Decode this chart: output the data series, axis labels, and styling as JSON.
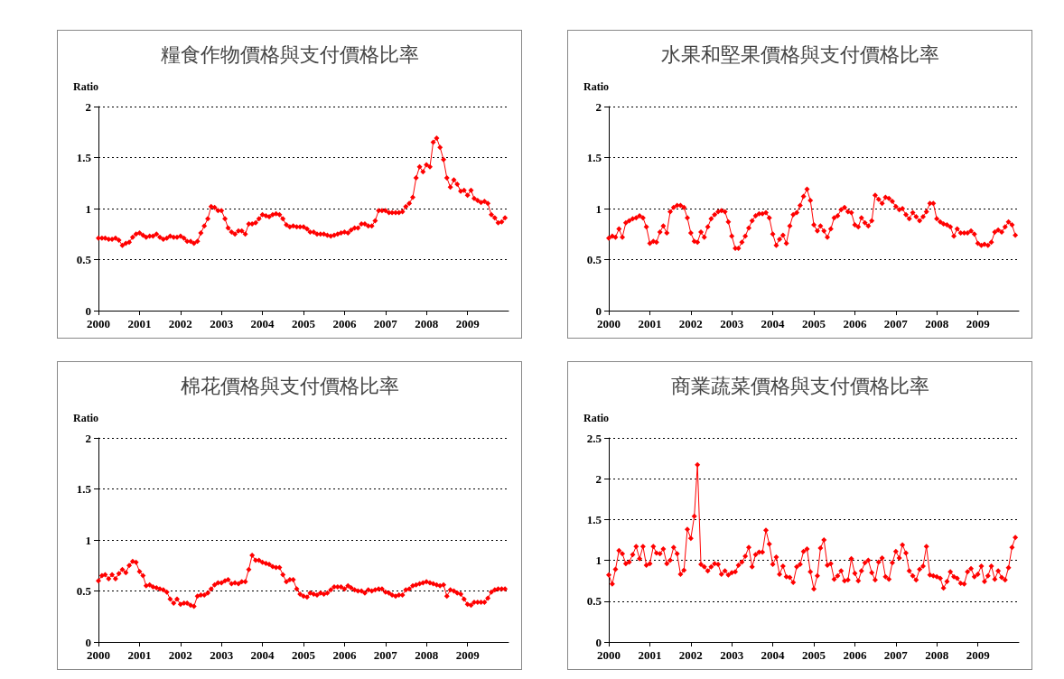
{
  "chart_data": [
    {
      "type": "line",
      "title": "糧食作物價格與支付價格比率",
      "ylabel": "Ratio",
      "xlim": [
        "2000-01",
        "2010-01"
      ],
      "xticks": [
        "2000",
        "2001",
        "2002",
        "2003",
        "2004",
        "2005",
        "2006",
        "2007",
        "2008",
        "2009"
      ],
      "ylim": [
        0,
        2
      ],
      "yticks": [
        0,
        0.5,
        1,
        1.5,
        2
      ],
      "grid": "y",
      "marker": "diamond",
      "line_style": "solid",
      "x": [
        "2000-01",
        "2000-02",
        "2000-03",
        "2000-04",
        "2000-05",
        "2000-06",
        "2000-07",
        "2000-08",
        "2000-09",
        "2000-10",
        "2000-11",
        "2000-12",
        "2001-01",
        "2001-02",
        "2001-03",
        "2001-04",
        "2001-05",
        "2001-06",
        "2001-07",
        "2001-08",
        "2001-09",
        "2001-10",
        "2001-11",
        "2001-12",
        "2002-01",
        "2002-02",
        "2002-03",
        "2002-04",
        "2002-05",
        "2002-06",
        "2002-07",
        "2002-08",
        "2002-09",
        "2002-10",
        "2002-11",
        "2002-12",
        "2003-01",
        "2003-02",
        "2003-03",
        "2003-04",
        "2003-05",
        "2003-06",
        "2003-07",
        "2003-08",
        "2003-09",
        "2003-10",
        "2003-11",
        "2003-12",
        "2004-01",
        "2004-02",
        "2004-03",
        "2004-04",
        "2004-05",
        "2004-06",
        "2004-07",
        "2004-08",
        "2004-09",
        "2004-10",
        "2004-11",
        "2004-12",
        "2005-01",
        "2005-02",
        "2005-03",
        "2005-04",
        "2005-05",
        "2005-06",
        "2005-07",
        "2005-08",
        "2005-09",
        "2005-10",
        "2005-11",
        "2005-12",
        "2006-01",
        "2006-02",
        "2006-03",
        "2006-04",
        "2006-05",
        "2006-06",
        "2006-07",
        "2006-08",
        "2006-09",
        "2006-10",
        "2006-11",
        "2006-12",
        "2007-01",
        "2007-02",
        "2007-03",
        "2007-04",
        "2007-05",
        "2007-06",
        "2007-07",
        "2007-08",
        "2007-09",
        "2007-10",
        "2007-11",
        "2007-12",
        "2008-01",
        "2008-02",
        "2008-03",
        "2008-04",
        "2008-05",
        "2008-06",
        "2008-07",
        "2008-08",
        "2008-09",
        "2008-10",
        "2008-11",
        "2008-12",
        "2009-01",
        "2009-02",
        "2009-03",
        "2009-04",
        "2009-05",
        "2009-06",
        "2009-07",
        "2009-08",
        "2009-09",
        "2009-10",
        "2009-11",
        "2009-12"
      ],
      "series": [
        {
          "color": "#ff0000",
          "values": [
            0.71,
            0.71,
            0.71,
            0.7,
            0.7,
            0.71,
            0.69,
            0.64,
            0.66,
            0.67,
            0.72,
            0.75,
            0.76,
            0.74,
            0.72,
            0.73,
            0.73,
            0.75,
            0.72,
            0.7,
            0.71,
            0.73,
            0.72,
            0.72,
            0.73,
            0.71,
            0.68,
            0.68,
            0.66,
            0.68,
            0.76,
            0.83,
            0.9,
            1.02,
            1.01,
            0.98,
            0.98,
            0.9,
            0.81,
            0.77,
            0.75,
            0.78,
            0.78,
            0.75,
            0.85,
            0.85,
            0.86,
            0.9,
            0.94,
            0.93,
            0.92,
            0.94,
            0.95,
            0.94,
            0.9,
            0.84,
            0.82,
            0.83,
            0.82,
            0.82,
            0.82,
            0.8,
            0.77,
            0.77,
            0.75,
            0.75,
            0.75,
            0.74,
            0.73,
            0.74,
            0.75,
            0.76,
            0.77,
            0.76,
            0.79,
            0.81,
            0.81,
            0.85,
            0.85,
            0.83,
            0.83,
            0.88,
            0.98,
            0.98,
            0.98,
            0.96,
            0.96,
            0.96,
            0.96,
            0.97,
            1.02,
            1.05,
            1.11,
            1.3,
            1.41,
            1.36,
            1.43,
            1.41,
            1.65,
            1.69,
            1.6,
            1.48,
            1.3,
            1.21,
            1.28,
            1.24,
            1.17,
            1.18,
            1.13,
            1.18,
            1.1,
            1.08,
            1.06,
            1.07,
            1.05,
            0.94,
            0.91,
            0.86,
            0.87,
            0.91
          ]
        }
      ]
    },
    {
      "type": "line",
      "title": "水果和堅果價格與支付價格比率",
      "ylabel": "Ratio",
      "xlim": [
        "2000-01",
        "2010-01"
      ],
      "xticks": [
        "2000",
        "2001",
        "2002",
        "2003",
        "2004",
        "2005",
        "2006",
        "2007",
        "2008",
        "2009"
      ],
      "ylim": [
        0,
        2
      ],
      "yticks": [
        0,
        0.5,
        1,
        1.5,
        2
      ],
      "grid": "y",
      "marker": "diamond",
      "line_style": "solid",
      "x": [
        "2000-01",
        "2000-02",
        "2000-03",
        "2000-04",
        "2000-05",
        "2000-06",
        "2000-07",
        "2000-08",
        "2000-09",
        "2000-10",
        "2000-11",
        "2000-12",
        "2001-01",
        "2001-02",
        "2001-03",
        "2001-04",
        "2001-05",
        "2001-06",
        "2001-07",
        "2001-08",
        "2001-09",
        "2001-10",
        "2001-11",
        "2001-12",
        "2002-01",
        "2002-02",
        "2002-03",
        "2002-04",
        "2002-05",
        "2002-06",
        "2002-07",
        "2002-08",
        "2002-09",
        "2002-10",
        "2002-11",
        "2002-12",
        "2003-01",
        "2003-02",
        "2003-03",
        "2003-04",
        "2003-05",
        "2003-06",
        "2003-07",
        "2003-08",
        "2003-09",
        "2003-10",
        "2003-11",
        "2003-12",
        "2004-01",
        "2004-02",
        "2004-03",
        "2004-04",
        "2004-05",
        "2004-06",
        "2004-07",
        "2004-08",
        "2004-09",
        "2004-10",
        "2004-11",
        "2004-12",
        "2005-01",
        "2005-02",
        "2005-03",
        "2005-04",
        "2005-05",
        "2005-06",
        "2005-07",
        "2005-08",
        "2005-09",
        "2005-10",
        "2005-11",
        "2005-12",
        "2006-01",
        "2006-02",
        "2006-03",
        "2006-04",
        "2006-05",
        "2006-06",
        "2006-07",
        "2006-08",
        "2006-09",
        "2006-10",
        "2006-11",
        "2006-12",
        "2007-01",
        "2007-02",
        "2007-03",
        "2007-04",
        "2007-05",
        "2007-06",
        "2007-07",
        "2007-08",
        "2007-09",
        "2007-10",
        "2007-11",
        "2007-12",
        "2008-01",
        "2008-02",
        "2008-03",
        "2008-04",
        "2008-05",
        "2008-06",
        "2008-07",
        "2008-08",
        "2008-09",
        "2008-10",
        "2008-11",
        "2008-12",
        "2009-01",
        "2009-02",
        "2009-03",
        "2009-04",
        "2009-05",
        "2009-06",
        "2009-07",
        "2009-08",
        "2009-09",
        "2009-10",
        "2009-11",
        "2009-12"
      ],
      "series": [
        {
          "color": "#ff0000",
          "values": [
            0.71,
            0.73,
            0.72,
            0.8,
            0.72,
            0.86,
            0.88,
            0.9,
            0.91,
            0.93,
            0.91,
            0.82,
            0.66,
            0.68,
            0.67,
            0.77,
            0.83,
            0.76,
            0.97,
            1.01,
            1.03,
            1.03,
            1.01,
            0.91,
            0.76,
            0.68,
            0.67,
            0.77,
            0.72,
            0.82,
            0.9,
            0.94,
            0.97,
            0.98,
            0.97,
            0.87,
            0.73,
            0.61,
            0.61,
            0.67,
            0.73,
            0.81,
            0.88,
            0.93,
            0.95,
            0.95,
            0.96,
            0.91,
            0.75,
            0.64,
            0.7,
            0.74,
            0.66,
            0.83,
            0.94,
            0.96,
            1.03,
            1.12,
            1.19,
            1.08,
            0.84,
            0.78,
            0.83,
            0.78,
            0.72,
            0.8,
            0.91,
            0.93,
            0.99,
            1.01,
            0.97,
            0.96,
            0.84,
            0.82,
            0.91,
            0.86,
            0.83,
            0.88,
            1.13,
            1.09,
            1.05,
            1.11,
            1.1,
            1.07,
            1.02,
            0.99,
            1.0,
            0.94,
            0.9,
            0.96,
            0.92,
            0.88,
            0.92,
            0.97,
            1.05,
            1.05,
            0.9,
            0.87,
            0.85,
            0.84,
            0.82,
            0.73,
            0.8,
            0.76,
            0.76,
            0.76,
            0.78,
            0.75,
            0.66,
            0.64,
            0.65,
            0.64,
            0.67,
            0.77,
            0.79,
            0.77,
            0.82,
            0.87,
            0.84,
            0.74
          ]
        }
      ]
    },
    {
      "type": "line",
      "title": "棉花價格與支付價格比率",
      "ylabel": "Ratio",
      "xlim": [
        "2000-01",
        "2010-01"
      ],
      "xticks": [
        "2000",
        "2001",
        "2002",
        "2003",
        "2004",
        "2005",
        "2006",
        "2007",
        "2008",
        "2009"
      ],
      "ylim": [
        0,
        2
      ],
      "yticks": [
        0,
        0.5,
        1,
        1.5,
        2
      ],
      "grid": "y",
      "marker": "diamond",
      "line_style": "solid",
      "x": [
        "2000-01",
        "2000-02",
        "2000-03",
        "2000-04",
        "2000-05",
        "2000-06",
        "2000-07",
        "2000-08",
        "2000-09",
        "2000-10",
        "2000-11",
        "2000-12",
        "2001-01",
        "2001-02",
        "2001-03",
        "2001-04",
        "2001-05",
        "2001-06",
        "2001-07",
        "2001-08",
        "2001-09",
        "2001-10",
        "2001-11",
        "2001-12",
        "2002-01",
        "2002-02",
        "2002-03",
        "2002-04",
        "2002-05",
        "2002-06",
        "2002-07",
        "2002-08",
        "2002-09",
        "2002-10",
        "2002-11",
        "2002-12",
        "2003-01",
        "2003-02",
        "2003-03",
        "2003-04",
        "2003-05",
        "2003-06",
        "2003-07",
        "2003-08",
        "2003-09",
        "2003-10",
        "2003-11",
        "2003-12",
        "2004-01",
        "2004-02",
        "2004-03",
        "2004-04",
        "2004-05",
        "2004-06",
        "2004-07",
        "2004-08",
        "2004-09",
        "2004-10",
        "2004-11",
        "2004-12",
        "2005-01",
        "2005-02",
        "2005-03",
        "2005-04",
        "2005-05",
        "2005-06",
        "2005-07",
        "2005-08",
        "2005-09",
        "2005-10",
        "2005-11",
        "2005-12",
        "2006-01",
        "2006-02",
        "2006-03",
        "2006-04",
        "2006-05",
        "2006-06",
        "2006-07",
        "2006-08",
        "2006-09",
        "2006-10",
        "2006-11",
        "2006-12",
        "2007-01",
        "2007-02",
        "2007-03",
        "2007-04",
        "2007-05",
        "2007-06",
        "2007-07",
        "2007-08",
        "2007-09",
        "2007-10",
        "2007-11",
        "2007-12",
        "2008-01",
        "2008-02",
        "2008-03",
        "2008-04",
        "2008-05",
        "2008-06",
        "2008-07",
        "2008-08",
        "2008-09",
        "2008-10",
        "2008-11",
        "2008-12",
        "2009-01",
        "2009-02",
        "2009-03",
        "2009-04",
        "2009-05",
        "2009-06",
        "2009-07",
        "2009-08",
        "2009-09",
        "2009-10",
        "2009-11",
        "2009-12"
      ],
      "series": [
        {
          "color": "#ff0000",
          "values": [
            0.6,
            0.65,
            0.66,
            0.62,
            0.66,
            0.62,
            0.67,
            0.71,
            0.68,
            0.75,
            0.79,
            0.78,
            0.69,
            0.65,
            0.55,
            0.56,
            0.54,
            0.53,
            0.52,
            0.51,
            0.49,
            0.42,
            0.38,
            0.42,
            0.37,
            0.38,
            0.38,
            0.36,
            0.35,
            0.45,
            0.46,
            0.46,
            0.48,
            0.52,
            0.56,
            0.58,
            0.58,
            0.6,
            0.61,
            0.57,
            0.58,
            0.57,
            0.59,
            0.59,
            0.71,
            0.85,
            0.8,
            0.8,
            0.78,
            0.77,
            0.76,
            0.74,
            0.73,
            0.73,
            0.66,
            0.59,
            0.61,
            0.61,
            0.52,
            0.47,
            0.45,
            0.44,
            0.48,
            0.47,
            0.46,
            0.48,
            0.47,
            0.48,
            0.51,
            0.54,
            0.54,
            0.54,
            0.52,
            0.55,
            0.53,
            0.51,
            0.5,
            0.5,
            0.48,
            0.51,
            0.5,
            0.51,
            0.52,
            0.52,
            0.49,
            0.48,
            0.46,
            0.45,
            0.46,
            0.46,
            0.51,
            0.52,
            0.55,
            0.56,
            0.57,
            0.58,
            0.59,
            0.58,
            0.57,
            0.56,
            0.55,
            0.56,
            0.45,
            0.51,
            0.5,
            0.48,
            0.47,
            0.42,
            0.37,
            0.36,
            0.39,
            0.39,
            0.39,
            0.39,
            0.43,
            0.49,
            0.51,
            0.52,
            0.52,
            0.52
          ]
        }
      ]
    },
    {
      "type": "line",
      "title": "商業蔬菜價格與支付價格比率",
      "ylabel": "Ratio",
      "xlim": [
        "2000-01",
        "2010-01"
      ],
      "xticks": [
        "2000",
        "2001",
        "2002",
        "2003",
        "2004",
        "2005",
        "2006",
        "2007",
        "2008",
        "2009"
      ],
      "ylim": [
        0,
        2.5
      ],
      "yticks": [
        0,
        0.5,
        1,
        1.5,
        2,
        2.5
      ],
      "grid": "y",
      "marker": "diamond",
      "line_style": "solid",
      "x": [
        "2000-01",
        "2000-02",
        "2000-03",
        "2000-04",
        "2000-05",
        "2000-06",
        "2000-07",
        "2000-08",
        "2000-09",
        "2000-10",
        "2000-11",
        "2000-12",
        "2001-01",
        "2001-02",
        "2001-03",
        "2001-04",
        "2001-05",
        "2001-06",
        "2001-07",
        "2001-08",
        "2001-09",
        "2001-10",
        "2001-11",
        "2001-12",
        "2002-01",
        "2002-02",
        "2002-03",
        "2002-04",
        "2002-05",
        "2002-06",
        "2002-07",
        "2002-08",
        "2002-09",
        "2002-10",
        "2002-11",
        "2002-12",
        "2003-01",
        "2003-02",
        "2003-03",
        "2003-04",
        "2003-05",
        "2003-06",
        "2003-07",
        "2003-08",
        "2003-09",
        "2003-10",
        "2003-11",
        "2003-12",
        "2004-01",
        "2004-02",
        "2004-03",
        "2004-04",
        "2004-05",
        "2004-06",
        "2004-07",
        "2004-08",
        "2004-09",
        "2004-10",
        "2004-11",
        "2004-12",
        "2005-01",
        "2005-02",
        "2005-03",
        "2005-04",
        "2005-05",
        "2005-06",
        "2005-07",
        "2005-08",
        "2005-09",
        "2005-10",
        "2005-11",
        "2005-12",
        "2006-01",
        "2006-02",
        "2006-03",
        "2006-04",
        "2006-05",
        "2006-06",
        "2006-07",
        "2006-08",
        "2006-09",
        "2006-10",
        "2006-11",
        "2006-12",
        "2007-01",
        "2007-02",
        "2007-03",
        "2007-04",
        "2007-05",
        "2007-06",
        "2007-07",
        "2007-08",
        "2007-09",
        "2007-10",
        "2007-11",
        "2007-12",
        "2008-01",
        "2008-02",
        "2008-03",
        "2008-04",
        "2008-05",
        "2008-06",
        "2008-07",
        "2008-08",
        "2008-09",
        "2008-10",
        "2008-11",
        "2008-12",
        "2009-01",
        "2009-02",
        "2009-03",
        "2009-04",
        "2009-05",
        "2009-06",
        "2009-07",
        "2009-08",
        "2009-09",
        "2009-10",
        "2009-11",
        "2009-12"
      ],
      "series": [
        {
          "color": "#ff0000",
          "values": [
            0.82,
            0.71,
            0.89,
            1.12,
            1.08,
            0.96,
            0.98,
            1.07,
            1.17,
            1.02,
            1.17,
            0.94,
            0.96,
            1.17,
            1.09,
            1.08,
            1.14,
            0.96,
            1.0,
            1.16,
            1.08,
            0.83,
            0.88,
            1.38,
            1.27,
            1.54,
            2.17,
            0.95,
            0.92,
            0.87,
            0.92,
            0.96,
            0.95,
            0.83,
            0.87,
            0.82,
            0.85,
            0.86,
            0.94,
            0.98,
            1.05,
            1.16,
            0.92,
            1.07,
            1.1,
            1.1,
            1.37,
            1.2,
            0.95,
            1.04,
            0.83,
            0.93,
            0.8,
            0.79,
            0.73,
            0.92,
            0.95,
            1.11,
            1.14,
            0.86,
            0.65,
            0.81,
            1.15,
            1.25,
            0.94,
            0.96,
            0.77,
            0.81,
            0.87,
            0.75,
            0.76,
            1.02,
            0.84,
            0.75,
            0.87,
            0.97,
            1.0,
            0.85,
            0.76,
            0.98,
            1.03,
            0.8,
            0.77,
            0.97,
            1.11,
            1.03,
            1.19,
            1.09,
            0.87,
            0.81,
            0.76,
            0.89,
            0.93,
            1.17,
            0.82,
            0.81,
            0.8,
            0.78,
            0.66,
            0.74,
            0.86,
            0.8,
            0.78,
            0.72,
            0.71,
            0.86,
            0.9,
            0.8,
            0.83,
            0.93,
            0.74,
            0.81,
            0.93,
            0.77,
            0.87,
            0.79,
            0.76,
            0.91,
            1.16,
            1.28
          ]
        }
      ]
    }
  ]
}
